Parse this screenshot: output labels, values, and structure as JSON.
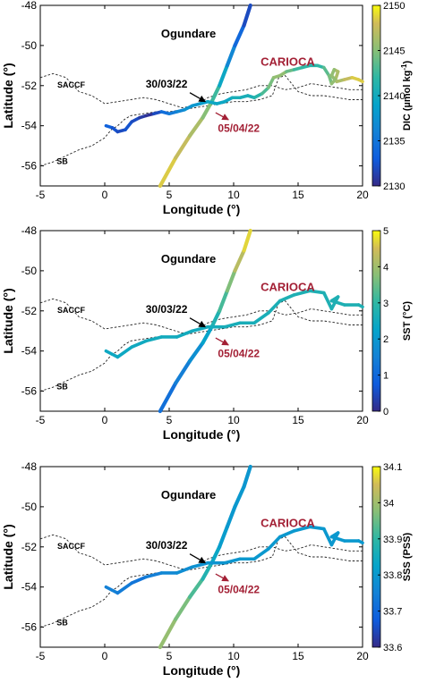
{
  "chart_data": [
    {
      "type": "scatter",
      "panel": "top",
      "xlabel": "Longitude (°)",
      "ylabel": "Latitude (°)",
      "xlim": [
        -5,
        20
      ],
      "ylim": [
        -57,
        -48
      ],
      "xticks": [
        "-5",
        "0",
        "5",
        "10",
        "15",
        "20"
      ],
      "yticks": [
        "-48",
        "-50",
        "-52",
        "-54",
        "-56"
      ],
      "grid": false,
      "colorbar": {
        "label": "DIC (µmol kg-1)",
        "label_main": "DIC (µmol kg",
        "label_sup": "-1",
        "label_end": ")",
        "range": [
          2130,
          2150
        ],
        "ticks": [
          "2150",
          "2145",
          "2140",
          "2135",
          "2130"
        ],
        "colormap": "parula"
      },
      "annotations": {
        "ogundare": "Ogundare",
        "carioca": "CARIOCA",
        "date_ogundare": "30/03/22",
        "date_carioca": "05/04/22",
        "saccf": "SACCF",
        "sb": "SB"
      },
      "series": [
        {
          "name": "Ogundare",
          "points": [
            {
              "x": 4.3,
              "y": -57.0,
              "v": 2149
            },
            {
              "x": 5.5,
              "y": -55.6,
              "v": 2148
            },
            {
              "x": 6.6,
              "y": -54.5,
              "v": 2147
            },
            {
              "x": 7.6,
              "y": -53.6,
              "v": 2146
            },
            {
              "x": 8.3,
              "y": -52.8,
              "v": 2144
            },
            {
              "x": 8.9,
              "y": -52.0,
              "v": 2141
            },
            {
              "x": 9.5,
              "y": -51.0,
              "v": 2138
            },
            {
              "x": 10.1,
              "y": -50.0,
              "v": 2135
            },
            {
              "x": 10.8,
              "y": -49.0,
              "v": 2133
            },
            {
              "x": 11.3,
              "y": -48.0,
              "v": 2131
            }
          ]
        },
        {
          "name": "CARIOCA",
          "points": [
            {
              "x": 0.1,
              "y": -54.0,
              "v": 2134
            },
            {
              "x": 0.6,
              "y": -54.1,
              "v": 2133
            },
            {
              "x": 1.0,
              "y": -54.3,
              "v": 2132
            },
            {
              "x": 1.6,
              "y": -54.2,
              "v": 2132
            },
            {
              "x": 2.1,
              "y": -53.8,
              "v": 2133
            },
            {
              "x": 2.7,
              "y": -53.6,
              "v": 2131
            },
            {
              "x": 3.2,
              "y": -53.5,
              "v": 2131
            },
            {
              "x": 3.8,
              "y": -53.4,
              "v": 2130
            },
            {
              "x": 4.4,
              "y": -53.3,
              "v": 2134
            },
            {
              "x": 5.0,
              "y": -53.4,
              "v": 2135
            },
            {
              "x": 5.6,
              "y": -53.3,
              "v": 2136
            },
            {
              "x": 6.2,
              "y": -53.2,
              "v": 2137
            },
            {
              "x": 6.8,
              "y": -53.0,
              "v": 2138
            },
            {
              "x": 7.4,
              "y": -52.9,
              "v": 2138
            },
            {
              "x": 8.0,
              "y": -52.8,
              "v": 2139
            },
            {
              "x": 8.7,
              "y": -52.9,
              "v": 2140
            },
            {
              "x": 9.3,
              "y": -52.8,
              "v": 2139
            },
            {
              "x": 9.9,
              "y": -52.6,
              "v": 2140
            },
            {
              "x": 10.5,
              "y": -52.6,
              "v": 2141
            },
            {
              "x": 11.1,
              "y": -52.5,
              "v": 2140
            },
            {
              "x": 11.6,
              "y": -52.6,
              "v": 2141
            },
            {
              "x": 12.2,
              "y": -52.4,
              "v": 2142
            },
            {
              "x": 12.7,
              "y": -52.1,
              "v": 2144
            },
            {
              "x": 13.1,
              "y": -51.6,
              "v": 2145
            },
            {
              "x": 13.6,
              "y": -51.5,
              "v": 2146
            },
            {
              "x": 14.1,
              "y": -51.3,
              "v": 2145
            },
            {
              "x": 14.7,
              "y": -51.2,
              "v": 2143
            },
            {
              "x": 15.3,
              "y": -51.1,
              "v": 2142
            },
            {
              "x": 15.9,
              "y": -51.0,
              "v": 2142
            },
            {
              "x": 16.5,
              "y": -51.0,
              "v": 2141
            },
            {
              "x": 17.0,
              "y": -51.1,
              "v": 2143
            },
            {
              "x": 17.4,
              "y": -51.5,
              "v": 2144
            },
            {
              "x": 17.6,
              "y": -51.9,
              "v": 2145
            },
            {
              "x": 17.9,
              "y": -51.7,
              "v": 2146
            },
            {
              "x": 18.1,
              "y": -51.3,
              "v": 2147
            },
            {
              "x": 17.8,
              "y": -51.2,
              "v": 2146
            },
            {
              "x": 17.6,
              "y": -51.5,
              "v": 2145
            },
            {
              "x": 18.0,
              "y": -51.8,
              "v": 2146
            },
            {
              "x": 18.6,
              "y": -51.7,
              "v": 2147
            },
            {
              "x": 19.2,
              "y": -51.6,
              "v": 2148
            },
            {
              "x": 19.7,
              "y": -51.7,
              "v": 2149
            },
            {
              "x": 20.0,
              "y": -51.8,
              "v": 2148
            }
          ]
        }
      ]
    },
    {
      "type": "scatter",
      "panel": "middle",
      "xlabel": "Longitude (°)",
      "ylabel": "Latitude (°)",
      "xlim": [
        -5,
        20
      ],
      "ylim": [
        -57,
        -48
      ],
      "xticks": [
        "-5",
        "0",
        "5",
        "10",
        "15",
        "20"
      ],
      "yticks": [
        "-48",
        "-50",
        "-52",
        "-54",
        "-56"
      ],
      "grid": false,
      "colorbar": {
        "label": "SST (°C)",
        "label_main": "SST (°C)",
        "label_sup": "",
        "label_end": "",
        "range": [
          0,
          5
        ],
        "ticks": [
          "5",
          "4",
          "3",
          "2",
          "1",
          "0"
        ],
        "colormap": "parula"
      },
      "annotations": {
        "ogundare": "Ogundare",
        "carioca": "CARIOCA",
        "date_ogundare": "30/03/22",
        "date_carioca": "05/04/22",
        "saccf": "SACCF",
        "sb": "SB"
      },
      "series": [
        {
          "name": "Ogundare",
          "points": [
            {
              "x": 4.3,
              "y": -57.0,
              "v": 1.0
            },
            {
              "x": 5.5,
              "y": -55.6,
              "v": 1.3
            },
            {
              "x": 6.6,
              "y": -54.5,
              "v": 1.6
            },
            {
              "x": 7.6,
              "y": -53.6,
              "v": 2.0
            },
            {
              "x": 8.3,
              "y": -52.8,
              "v": 2.5
            },
            {
              "x": 8.9,
              "y": -52.0,
              "v": 3.0
            },
            {
              "x": 9.5,
              "y": -51.0,
              "v": 3.4
            },
            {
              "x": 10.1,
              "y": -50.0,
              "v": 4.0
            },
            {
              "x": 10.8,
              "y": -49.0,
              "v": 4.5
            },
            {
              "x": 11.3,
              "y": -48.0,
              "v": 4.9
            }
          ]
        },
        {
          "name": "CARIOCA",
          "points": [
            {
              "x": 0.1,
              "y": -54.0,
              "v": 2.4
            },
            {
              "x": 1.0,
              "y": -54.3,
              "v": 2.4
            },
            {
              "x": 2.1,
              "y": -53.8,
              "v": 2.4
            },
            {
              "x": 3.2,
              "y": -53.5,
              "v": 2.5
            },
            {
              "x": 4.4,
              "y": -53.3,
              "v": 2.5
            },
            {
              "x": 5.6,
              "y": -53.3,
              "v": 2.5
            },
            {
              "x": 6.8,
              "y": -53.0,
              "v": 2.5
            },
            {
              "x": 8.0,
              "y": -52.8,
              "v": 2.5
            },
            {
              "x": 9.3,
              "y": -52.8,
              "v": 2.6
            },
            {
              "x": 10.5,
              "y": -52.6,
              "v": 2.6
            },
            {
              "x": 11.6,
              "y": -52.6,
              "v": 2.6
            },
            {
              "x": 12.7,
              "y": -52.1,
              "v": 2.6
            },
            {
              "x": 13.6,
              "y": -51.5,
              "v": 2.7
            },
            {
              "x": 14.7,
              "y": -51.2,
              "v": 2.7
            },
            {
              "x": 15.9,
              "y": -51.0,
              "v": 2.7
            },
            {
              "x": 17.0,
              "y": -51.1,
              "v": 2.7
            },
            {
              "x": 17.6,
              "y": -51.9,
              "v": 2.7
            },
            {
              "x": 18.1,
              "y": -51.3,
              "v": 2.7
            },
            {
              "x": 17.6,
              "y": -51.5,
              "v": 2.7
            },
            {
              "x": 18.6,
              "y": -51.7,
              "v": 2.7
            },
            {
              "x": 19.7,
              "y": -51.7,
              "v": 2.7
            },
            {
              "x": 20.0,
              "y": -51.8,
              "v": 2.7
            }
          ]
        }
      ]
    },
    {
      "type": "scatter",
      "panel": "bottom",
      "xlabel": "Longitude (°)",
      "ylabel": "Latitude (°)",
      "xlim": [
        -5,
        20
      ],
      "ylim": [
        -57,
        -48
      ],
      "xticks": [
        "-5",
        "0",
        "5",
        "10",
        "15",
        "20"
      ],
      "yticks": [
        "-48",
        "-50",
        "-52",
        "-54",
        "-56"
      ],
      "grid": false,
      "colorbar": {
        "label": "SSS (PSS)",
        "label_main": "SSS (PSS)",
        "label_sup": "",
        "label_end": "",
        "range": [
          33.6,
          34.1
        ],
        "ticks": [
          "34.1",
          "34",
          "33.9",
          "33.8",
          "33.7",
          "33.6"
        ],
        "colormap": "parula"
      },
      "annotations": {
        "ogundare": "Ogundare",
        "carioca": "CARIOCA",
        "date_ogundare": "30/03/22",
        "date_carioca": "05/04/22",
        "saccf": "SACCF",
        "sb": "SB"
      },
      "series": [
        {
          "name": "Ogundare",
          "points": [
            {
              "x": 4.3,
              "y": -57.0,
              "v": 34.0
            },
            {
              "x": 5.5,
              "y": -55.6,
              "v": 33.98
            },
            {
              "x": 6.6,
              "y": -54.5,
              "v": 33.95
            },
            {
              "x": 7.6,
              "y": -53.6,
              "v": 33.9
            },
            {
              "x": 8.3,
              "y": -52.8,
              "v": 33.85
            },
            {
              "x": 8.9,
              "y": -52.0,
              "v": 33.82
            },
            {
              "x": 9.5,
              "y": -51.0,
              "v": 33.8
            },
            {
              "x": 10.1,
              "y": -50.0,
              "v": 33.8
            },
            {
              "x": 10.8,
              "y": -49.0,
              "v": 33.8
            },
            {
              "x": 11.3,
              "y": -48.0,
              "v": 33.79
            }
          ]
        },
        {
          "name": "CARIOCA",
          "points": [
            {
              "x": 0.1,
              "y": -54.0,
              "v": 33.74
            },
            {
              "x": 1.0,
              "y": -54.3,
              "v": 33.76
            },
            {
              "x": 2.1,
              "y": -53.8,
              "v": 33.72
            },
            {
              "x": 3.2,
              "y": -53.5,
              "v": 33.73
            },
            {
              "x": 4.4,
              "y": -53.3,
              "v": 33.76
            },
            {
              "x": 5.6,
              "y": -53.3,
              "v": 33.77
            },
            {
              "x": 6.8,
              "y": -53.0,
              "v": 33.78
            },
            {
              "x": 8.0,
              "y": -52.8,
              "v": 33.79
            },
            {
              "x": 9.3,
              "y": -52.8,
              "v": 33.79
            },
            {
              "x": 10.5,
              "y": -52.6,
              "v": 33.8
            },
            {
              "x": 11.6,
              "y": -52.6,
              "v": 33.8
            },
            {
              "x": 12.7,
              "y": -52.1,
              "v": 33.8
            },
            {
              "x": 13.6,
              "y": -51.5,
              "v": 33.8
            },
            {
              "x": 14.7,
              "y": -51.2,
              "v": 33.8
            },
            {
              "x": 15.9,
              "y": -51.0,
              "v": 33.8
            },
            {
              "x": 17.0,
              "y": -51.1,
              "v": 33.8
            },
            {
              "x": 17.6,
              "y": -51.9,
              "v": 33.8
            },
            {
              "x": 18.1,
              "y": -51.3,
              "v": 33.8
            },
            {
              "x": 17.6,
              "y": -51.5,
              "v": 33.8
            },
            {
              "x": 18.6,
              "y": -51.7,
              "v": 33.8
            },
            {
              "x": 19.7,
              "y": -51.7,
              "v": 33.8
            },
            {
              "x": 20.0,
              "y": -51.8,
              "v": 33.8
            }
          ]
        }
      ]
    }
  ],
  "fronts": {
    "SACCF": [
      [
        -5,
        -51.6
      ],
      [
        -4,
        -51.4
      ],
      [
        -3,
        -51.6
      ],
      [
        -2,
        -52.3
      ],
      [
        -1,
        -52.5
      ],
      [
        0,
        -52.9
      ],
      [
        1,
        -52.8
      ],
      [
        2,
        -52.7
      ],
      [
        3,
        -52.6
      ],
      [
        4,
        -52.7
      ],
      [
        5,
        -52.9
      ],
      [
        6,
        -53.1
      ],
      [
        7,
        -53.0
      ],
      [
        8,
        -52.6
      ],
      [
        9,
        -52.4
      ],
      [
        10,
        -52.3
      ],
      [
        11,
        -52.2
      ],
      [
        12,
        -52.0
      ],
      [
        13,
        -52.0
      ],
      [
        14,
        -52.2
      ],
      [
        15,
        -52.1
      ],
      [
        16,
        -51.9
      ],
      [
        17,
        -52.0
      ],
      [
        18,
        -52.1
      ],
      [
        19,
        -52.2
      ],
      [
        20,
        -52.2
      ]
    ],
    "SB": [
      [
        -5,
        -56.0
      ],
      [
        -4,
        -55.8
      ],
      [
        -3,
        -55.5
      ],
      [
        -2,
        -55.2
      ],
      [
        -1,
        -55.0
      ],
      [
        -0.5,
        -54.8
      ],
      [
        0,
        -54.6
      ],
      [
        0.5,
        -54.2
      ],
      [
        1,
        -54.0
      ],
      [
        1.5,
        -53.7
      ],
      [
        2,
        -53.5
      ],
      [
        3,
        -53.4
      ],
      [
        4,
        -53.3
      ],
      [
        5,
        -53.3
      ],
      [
        6,
        -53.2
      ],
      [
        7,
        -53.1
      ],
      [
        8,
        -53.0
      ],
      [
        9,
        -52.9
      ],
      [
        10,
        -52.8
      ],
      [
        11,
        -52.8
      ],
      [
        12,
        -52.7
      ],
      [
        13,
        -52.5
      ],
      [
        13.5,
        -51.6
      ],
      [
        14,
        -51.5
      ],
      [
        15,
        -52.3
      ],
      [
        16,
        -52.5
      ],
      [
        17,
        -52.5
      ],
      [
        18,
        -52.6
      ],
      [
        19,
        -52.7
      ],
      [
        20,
        -52.7
      ]
    ]
  }
}
